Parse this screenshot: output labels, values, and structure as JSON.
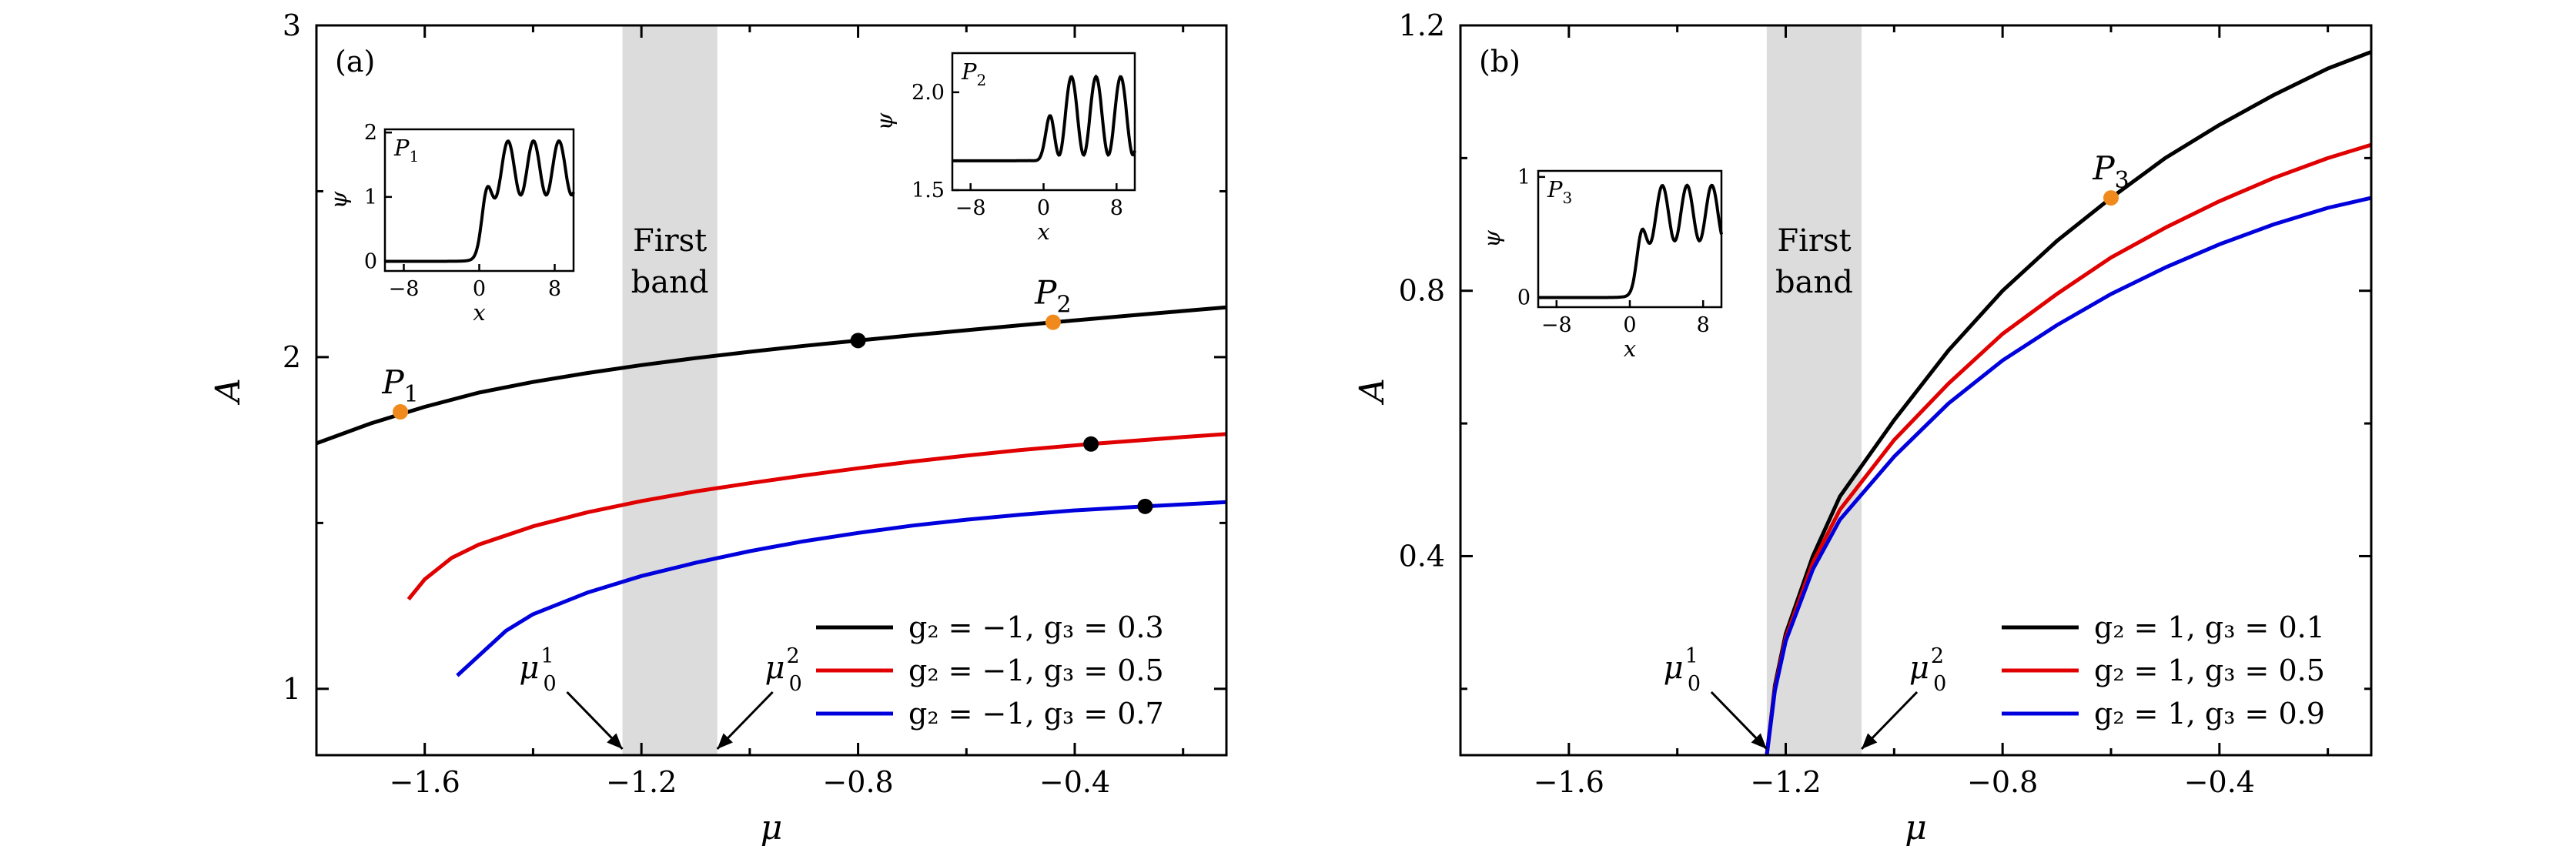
{
  "figure": {
    "panels": [
      {
        "id": "a",
        "panel_label": "(a)",
        "xlabel": "μ",
        "ylabel": "A",
        "xlim": [
          -1.8,
          -0.12
        ],
        "ylim": [
          0.8,
          3.0
        ],
        "xticks": [
          -1.6,
          -1.2,
          -0.8,
          -0.4
        ],
        "xtick_labels": [
          "−1.6",
          "−1.2",
          "−0.8",
          "−0.4"
        ],
        "yticks": [
          1,
          2,
          3
        ],
        "ytick_labels": [
          "1",
          "2",
          "3"
        ],
        "band": {
          "x0": -1.235,
          "x1": -1.06,
          "label_line1": "First",
          "label_line2": "band"
        },
        "mu_markers": [
          {
            "x": -1.235,
            "label": "μ",
            "sup": "1",
            "sub": "0",
            "side": "left"
          },
          {
            "x": -1.06,
            "label": "μ",
            "sup": "2",
            "sub": "0",
            "side": "right"
          }
        ],
        "legend": [
          {
            "text": "g₂ = −1,  g₃ = 0.3",
            "color": "#000000"
          },
          {
            "text": "g₂ = −1,  g₃ = 0.5",
            "color": "#e00000"
          },
          {
            "text": "g₂ = −1,  g₃ = 0.7",
            "color": "#0000dd"
          }
        ],
        "series": [
          {
            "color": "#000000",
            "points": [
              [
                -1.8,
                1.74
              ],
              [
                -1.7,
                1.8
              ],
              [
                -1.6,
                1.85
              ],
              [
                -1.5,
                1.893
              ],
              [
                -1.4,
                1.925
              ],
              [
                -1.3,
                1.952
              ],
              [
                -1.2,
                1.976
              ],
              [
                -1.1,
                1.997
              ],
              [
                -1.0,
                2.016
              ],
              [
                -0.9,
                2.034
              ],
              [
                -0.8,
                2.05
              ],
              [
                -0.7,
                2.066
              ],
              [
                -0.6,
                2.081
              ],
              [
                -0.5,
                2.096
              ],
              [
                -0.44,
                2.105
              ],
              [
                -0.3,
                2.125
              ],
              [
                -0.2,
                2.139
              ],
              [
                -0.12,
                2.15
              ]
            ]
          },
          {
            "color": "#e00000",
            "points": [
              [
                -1.63,
                1.27
              ],
              [
                -1.6,
                1.33
              ],
              [
                -1.55,
                1.395
              ],
              [
                -1.5,
                1.435
              ],
              [
                -1.4,
                1.49
              ],
              [
                -1.3,
                1.532
              ],
              [
                -1.2,
                1.566
              ],
              [
                -1.1,
                1.595
              ],
              [
                -1.0,
                1.62
              ],
              [
                -0.9,
                1.643
              ],
              [
                -0.8,
                1.665
              ],
              [
                -0.7,
                1.685
              ],
              [
                -0.6,
                1.703
              ],
              [
                -0.5,
                1.72
              ],
              [
                -0.37,
                1.738
              ],
              [
                -0.2,
                1.759
              ],
              [
                -0.12,
                1.768
              ]
            ]
          },
          {
            "color": "#0000dd",
            "points": [
              [
                -1.54,
                1.04
              ],
              [
                -1.5,
                1.1
              ],
              [
                -1.45,
                1.175
              ],
              [
                -1.4,
                1.225
              ],
              [
                -1.3,
                1.29
              ],
              [
                -1.2,
                1.34
              ],
              [
                -1.1,
                1.38
              ],
              [
                -1.0,
                1.415
              ],
              [
                -0.9,
                1.445
              ],
              [
                -0.8,
                1.47
              ],
              [
                -0.7,
                1.492
              ],
              [
                -0.6,
                1.51
              ],
              [
                -0.5,
                1.525
              ],
              [
                -0.4,
                1.538
              ],
              [
                -0.27,
                1.55
              ],
              [
                -0.2,
                1.556
              ],
              [
                -0.12,
                1.563
              ]
            ]
          }
        ],
        "markers": [
          {
            "x": -1.645,
            "y": 1.835,
            "color": "#f08a1c",
            "label": "P",
            "sub": "1"
          },
          {
            "x": -0.44,
            "y": 2.105,
            "color": "#f08a1c",
            "label": "P",
            "sub": "2"
          },
          {
            "x": -0.8,
            "y": 2.05,
            "color": "#000000"
          },
          {
            "x": -0.37,
            "y": 1.738,
            "color": "#000000"
          },
          {
            "x": -0.27,
            "y": 1.55,
            "color": "#000000"
          }
        ],
        "insets": [
          {
            "label": "P",
            "sub": "1",
            "xlabel": "x",
            "ylabel": "ψ",
            "xlim": [
              -10,
              10
            ],
            "ylim": [
              -0.15,
              2.05
            ],
            "xticks": [
              -8,
              0,
              8
            ],
            "xtick_labels": [
              "−8",
              "0",
              "8"
            ],
            "yticks": [
              0,
              1,
              2
            ],
            "ytick_labels": [
              "0",
              "1",
              "2"
            ],
            "profile": {
              "base": 0.0,
              "front": 0.5,
              "mid": 1.45,
              "amp": 0.42,
              "period": 2.7
            }
          },
          {
            "label": "P",
            "sub": "2",
            "xlabel": "x",
            "ylabel": "ψ",
            "xlim": [
              -10,
              10
            ],
            "ylim": [
              1.5,
              2.2
            ],
            "xticks": [
              -8,
              0,
              8
            ],
            "xtick_labels": [
              "−8",
              "0",
              "8"
            ],
            "yticks": [
              1.5,
              2.0
            ],
            "ytick_labels": [
              "1.5",
              "2.0"
            ],
            "profile": {
              "base": 1.65,
              "front": 0.5,
              "mid": 1.88,
              "amp": 0.2,
              "period": 2.7
            }
          }
        ]
      },
      {
        "id": "b",
        "panel_label": "(b)",
        "xlabel": "μ",
        "ylabel": "A",
        "xlim": [
          -1.8,
          -0.12
        ],
        "ylim": [
          0.1,
          1.2
        ],
        "xticks": [
          -1.6,
          -1.2,
          -0.8,
          -0.4
        ],
        "xtick_labels": [
          "−1.6",
          "−1.2",
          "−0.8",
          "−0.4"
        ],
        "yticks": [
          0.4,
          0.8,
          1.2
        ],
        "ytick_labels": [
          "0.4",
          "0.8",
          "1.2"
        ],
        "band": {
          "x0": -1.235,
          "x1": -1.06,
          "label_line1": "First",
          "label_line2": "band"
        },
        "mu_markers": [
          {
            "x": -1.235,
            "label": "μ",
            "sup": "1",
            "sub": "0",
            "side": "left"
          },
          {
            "x": -1.06,
            "label": "μ",
            "sup": "2",
            "sub": "0",
            "side": "right"
          }
        ],
        "legend": [
          {
            "text": "g₂ = 1,  g₃ = 0.1",
            "color": "#000000"
          },
          {
            "text": "g₂ = 1,  g₃ = 0.5",
            "color": "#e00000"
          },
          {
            "text": "g₂ = 1,  g₃ = 0.9",
            "color": "#0000dd"
          }
        ],
        "series": [
          {
            "color": "#000000",
            "points": [
              [
                -1.235,
                0.1
              ],
              [
                -1.22,
                0.205
              ],
              [
                -1.2,
                0.283
              ],
              [
                -1.15,
                0.4
              ],
              [
                -1.1,
                0.49
              ],
              [
                -1.0,
                0.605
              ],
              [
                -0.9,
                0.71
              ],
              [
                -0.8,
                0.8
              ],
              [
                -0.7,
                0.875
              ],
              [
                -0.6,
                0.94
              ],
              [
                -0.5,
                1.0
              ],
              [
                -0.4,
                1.05
              ],
              [
                -0.3,
                1.095
              ],
              [
                -0.2,
                1.135
              ],
              [
                -0.12,
                1.16
              ]
            ]
          },
          {
            "color": "#e00000",
            "points": [
              [
                -1.235,
                0.1
              ],
              [
                -1.22,
                0.2
              ],
              [
                -1.2,
                0.277
              ],
              [
                -1.15,
                0.39
              ],
              [
                -1.1,
                0.47
              ],
              [
                -1.0,
                0.575
              ],
              [
                -0.9,
                0.66
              ],
              [
                -0.8,
                0.735
              ],
              [
                -0.7,
                0.795
              ],
              [
                -0.6,
                0.85
              ],
              [
                -0.5,
                0.895
              ],
              [
                -0.4,
                0.935
              ],
              [
                -0.3,
                0.97
              ],
              [
                -0.2,
                1.0
              ],
              [
                -0.12,
                1.02
              ]
            ]
          },
          {
            "color": "#0000dd",
            "points": [
              [
                -1.235,
                0.1
              ],
              [
                -1.22,
                0.197
              ],
              [
                -1.2,
                0.272
              ],
              [
                -1.15,
                0.38
              ],
              [
                -1.1,
                0.455
              ],
              [
                -1.0,
                0.55
              ],
              [
                -0.9,
                0.63
              ],
              [
                -0.8,
                0.695
              ],
              [
                -0.7,
                0.748
              ],
              [
                -0.6,
                0.795
              ],
              [
                -0.5,
                0.835
              ],
              [
                -0.4,
                0.87
              ],
              [
                -0.3,
                0.9
              ],
              [
                -0.2,
                0.925
              ],
              [
                -0.12,
                0.94
              ]
            ]
          }
        ],
        "markers": [
          {
            "x": -0.6,
            "y": 0.94,
            "color": "#f08a1c",
            "label": "P",
            "sub": "3"
          }
        ],
        "insets": [
          {
            "label": "P",
            "sub": "3",
            "xlabel": "x",
            "ylabel": "ψ",
            "xlim": [
              -10,
              10
            ],
            "ylim": [
              -0.08,
              1.05
            ],
            "xticks": [
              -8,
              0,
              8
            ],
            "xtick_labels": [
              "−8",
              "0",
              "8"
            ],
            "yticks": [
              0,
              1
            ],
            "ytick_labels": [
              "0",
              "1"
            ],
            "profile": {
              "base": 0.0,
              "front": 1.0,
              "mid": 0.7,
              "amp": 0.23,
              "period": 2.7
            }
          }
        ]
      }
    ]
  }
}
